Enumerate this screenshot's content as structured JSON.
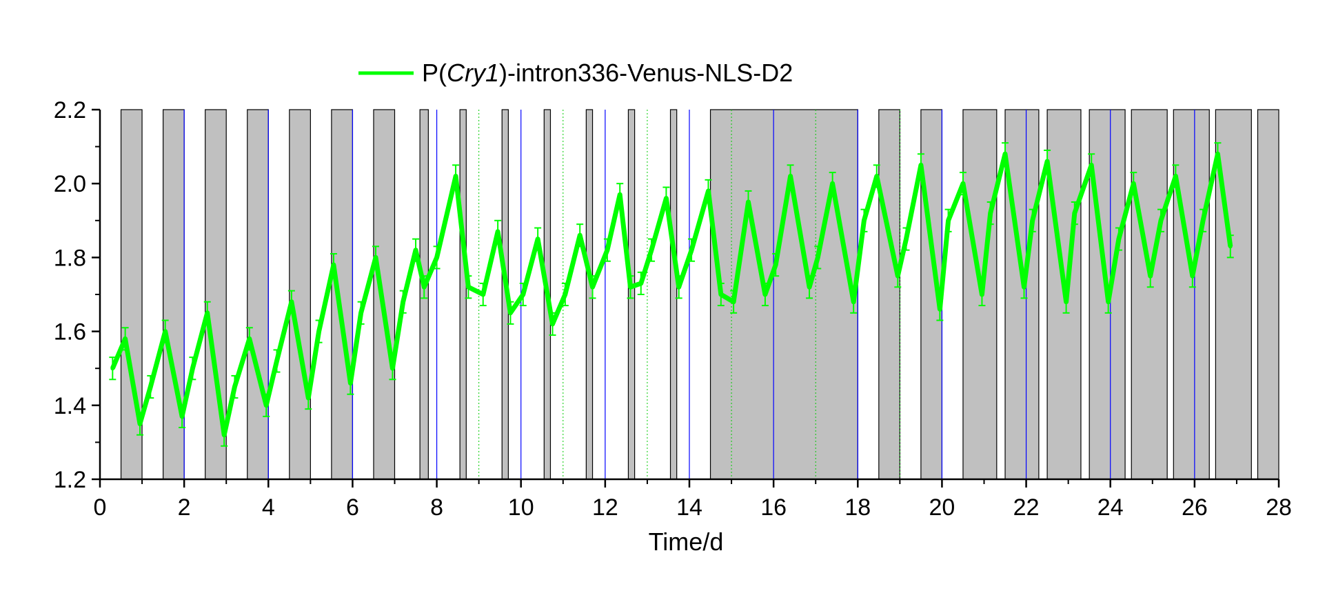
{
  "chart_data": {
    "type": "line",
    "xlabel": "Time/d",
    "ylabel": "",
    "xlim": [
      0,
      28
    ],
    "ylim": [
      1.2,
      2.2
    ],
    "x_ticks": [
      "0",
      "2",
      "4",
      "6",
      "8",
      "10",
      "12",
      "14",
      "16",
      "18",
      "20",
      "22",
      "24",
      "26",
      "28"
    ],
    "y_ticks": [
      "1.2",
      "1.4",
      "1.6",
      "1.8",
      "2.0",
      "2.2"
    ],
    "legend": {
      "prefix": "P(",
      "italic": "Cry1",
      "suffix": ")-intron336-Venus-NLS-D2",
      "placement": "top-left"
    },
    "dark_periods": [
      [
        0.5,
        1.0
      ],
      [
        1.5,
        2.0
      ],
      [
        2.5,
        3.0
      ],
      [
        3.5,
        4.0
      ],
      [
        4.5,
        5.0
      ],
      [
        5.5,
        6.0
      ],
      [
        6.5,
        7.0
      ],
      [
        7.6,
        7.8
      ],
      [
        8.55,
        8.7
      ],
      [
        9.55,
        9.7
      ],
      [
        10.55,
        10.7
      ],
      [
        11.55,
        11.7
      ],
      [
        12.55,
        12.7
      ],
      [
        13.55,
        13.7
      ],
      [
        14.5,
        18.0
      ],
      [
        18.5,
        19.0
      ],
      [
        19.5,
        20.0
      ],
      [
        20.5,
        21.3
      ],
      [
        21.5,
        22.3
      ],
      [
        22.5,
        23.3
      ],
      [
        23.5,
        24.35
      ],
      [
        24.5,
        25.35
      ],
      [
        25.5,
        26.35
      ],
      [
        26.5,
        27.35
      ],
      [
        27.5,
        28.0
      ]
    ],
    "blue_markers": [
      2,
      4,
      6,
      8,
      10,
      12,
      14,
      16,
      18,
      20,
      22,
      24,
      26
    ],
    "green_markers": [
      9,
      11,
      13,
      15,
      17,
      19
    ],
    "colors": {
      "series": "#00ff00",
      "dark_band": "#c0c0c0",
      "marker_blue": "#0000ff",
      "marker_green": "#00cc00"
    },
    "series": [
      {
        "name": "P(Cry1)-intron336-Venus-NLS-D2",
        "error": 0.03,
        "x": [
          0.3,
          0.6,
          0.95,
          1.2,
          1.55,
          1.95,
          2.2,
          2.55,
          2.95,
          3.2,
          3.55,
          3.95,
          4.2,
          4.55,
          4.95,
          5.2,
          5.55,
          5.95,
          6.2,
          6.55,
          6.95,
          7.2,
          7.5,
          7.7,
          8.0,
          8.45,
          8.75,
          9.1,
          9.45,
          9.75,
          10.05,
          10.4,
          10.75,
          11.05,
          11.4,
          11.7,
          12.05,
          12.35,
          12.6,
          12.85,
          13.1,
          13.45,
          13.75,
          14.05,
          14.45,
          14.75,
          15.05,
          15.4,
          15.8,
          16.05,
          16.4,
          16.85,
          17.05,
          17.4,
          17.9,
          18.15,
          18.45,
          18.95,
          19.15,
          19.5,
          19.95,
          20.15,
          20.5,
          20.95,
          21.15,
          21.5,
          21.95,
          22.15,
          22.5,
          22.95,
          23.15,
          23.55,
          23.95,
          24.2,
          24.55,
          24.95,
          25.2,
          25.55,
          25.95,
          26.2,
          26.55,
          26.85
        ],
        "y": [
          1.5,
          1.58,
          1.35,
          1.45,
          1.6,
          1.37,
          1.5,
          1.65,
          1.32,
          1.45,
          1.58,
          1.4,
          1.52,
          1.68,
          1.42,
          1.6,
          1.78,
          1.46,
          1.65,
          1.8,
          1.5,
          1.68,
          1.82,
          1.72,
          1.8,
          2.02,
          1.72,
          1.7,
          1.87,
          1.65,
          1.7,
          1.85,
          1.62,
          1.7,
          1.86,
          1.72,
          1.82,
          1.97,
          1.72,
          1.73,
          1.82,
          1.96,
          1.72,
          1.82,
          1.98,
          1.7,
          1.68,
          1.95,
          1.7,
          1.78,
          2.02,
          1.72,
          1.8,
          2.0,
          1.68,
          1.9,
          2.02,
          1.75,
          1.85,
          2.05,
          1.66,
          1.9,
          2.0,
          1.7,
          1.92,
          2.08,
          1.72,
          1.9,
          2.06,
          1.68,
          1.92,
          2.05,
          1.68,
          1.85,
          2.0,
          1.75,
          1.9,
          2.02,
          1.75,
          1.9,
          2.08,
          1.83
        ]
      }
    ]
  }
}
